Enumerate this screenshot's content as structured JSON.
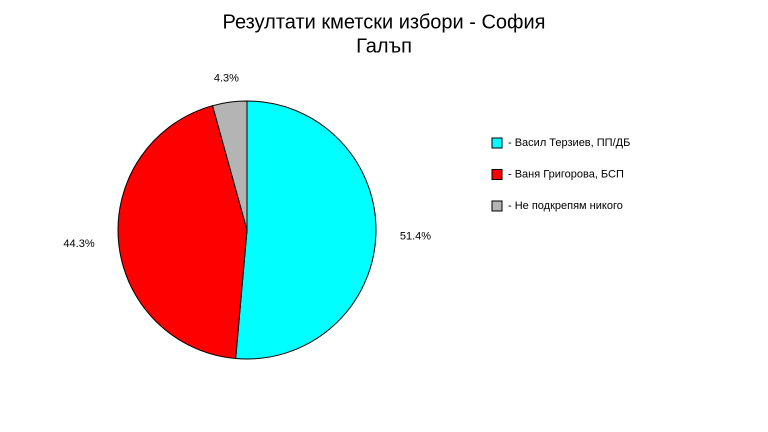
{
  "chart_data": {
    "type": "pie",
    "title": "Резултати кметски избори - София",
    "subtitle": "Галъп",
    "categories": [
      "- Васил Терзиев, ПП/ДБ",
      "- Ваня Григорова, БСП",
      "- Не подкрепям никого"
    ],
    "values": [
      51.4,
      44.3,
      4.3
    ],
    "value_labels": [
      "51.4%",
      "44.3%",
      "4.3%"
    ],
    "colors": [
      "#00ffff",
      "#ff0000",
      "#b4b4b4"
    ],
    "legend": "right"
  }
}
